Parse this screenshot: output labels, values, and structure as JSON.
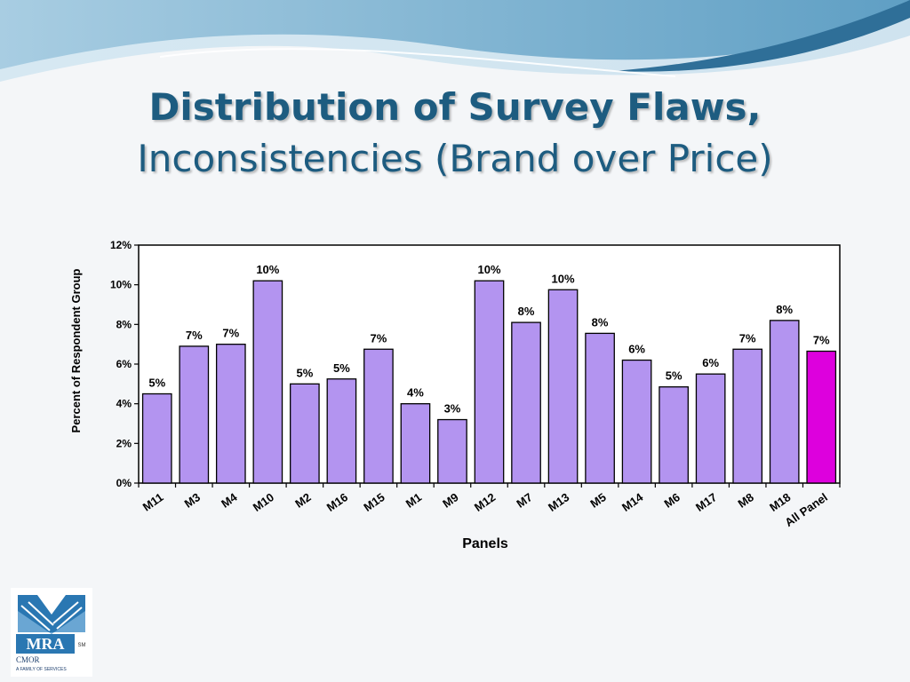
{
  "slide": {
    "title_bold": "Distribution of Survey Flaws,",
    "title_regular": "Inconsistencies (Brand over Price)"
  },
  "chart_data": {
    "type": "bar",
    "xlabel": "Panels",
    "ylabel": "Percent of Respondent Group",
    "ylim": [
      0,
      12
    ],
    "yticks": [
      "0%",
      "2%",
      "4%",
      "6%",
      "8%",
      "10%",
      "12%"
    ],
    "grid": false,
    "legend": "none",
    "categories": [
      "M11",
      "M3",
      "M4",
      "M10",
      "M2",
      "M16",
      "M15",
      "M1",
      "M9",
      "M12",
      "M7",
      "M13",
      "M5",
      "M14",
      "M6",
      "M17",
      "M8",
      "M18",
      "All Panel"
    ],
    "values": [
      4.5,
      6.9,
      7.0,
      10.2,
      5.0,
      5.25,
      6.75,
      4.0,
      3.2,
      10.2,
      8.1,
      9.75,
      7.55,
      6.2,
      4.85,
      5.5,
      6.75,
      8.2,
      6.65
    ],
    "data_labels": [
      "5%",
      "7%",
      "7%",
      "10%",
      "5%",
      "5%",
      "7%",
      "4%",
      "3%",
      "10%",
      "8%",
      "10%",
      "8%",
      "6%",
      "5%",
      "6%",
      "7%",
      "8%",
      "7%"
    ],
    "colors": {
      "bar": "#b394f0",
      "bar_highlight": "#dd00dd"
    }
  },
  "logo": {
    "text": "MRA",
    "mark": "SM",
    "sub1": "CMOR",
    "sub2": "A FAMILY OF SERVICES"
  },
  "colors": {
    "title": "#1d5c80",
    "wave_dark": "#3b7fa8",
    "wave_light": "#b9d6e8"
  }
}
